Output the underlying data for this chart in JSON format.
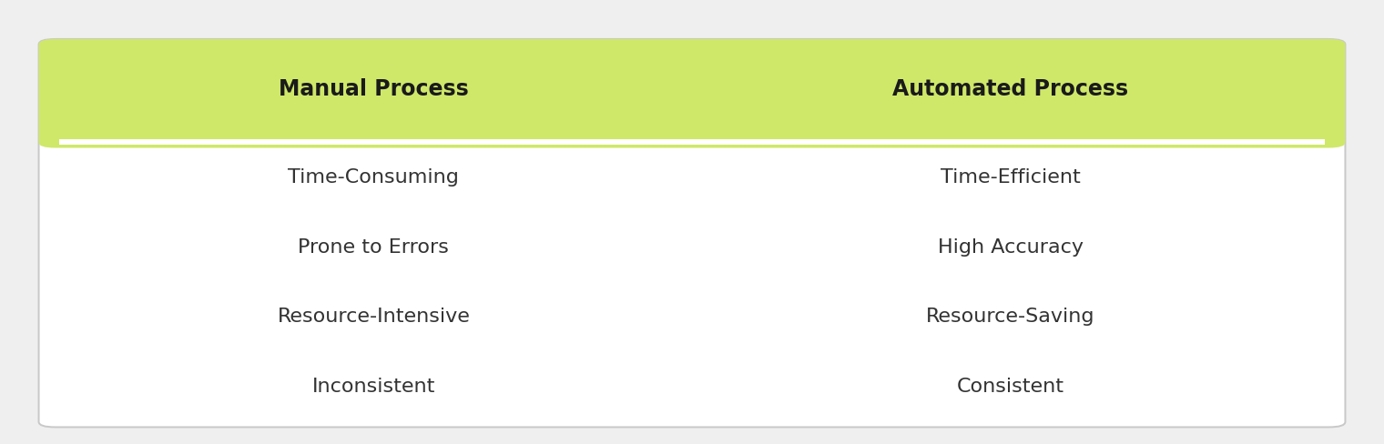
{
  "header_left": "Manual Process",
  "header_right": "Automated Process",
  "rows_left": [
    "Time-Consuming",
    "Prone to Errors",
    "Resource-Intensive",
    "Inconsistent"
  ],
  "rows_right": [
    "Time-Efficient",
    "High Accuracy",
    "Resource-Saving",
    "Consistent"
  ],
  "header_bg_color": "#cfe86a",
  "border_color": "#c8c8c8",
  "header_text_color": "#1a1a1a",
  "row_text_color": "#333333",
  "header_fontsize": 17,
  "row_fontsize": 16,
  "fig_bg_color": "#efefef",
  "table_bg_color": "#ffffff"
}
